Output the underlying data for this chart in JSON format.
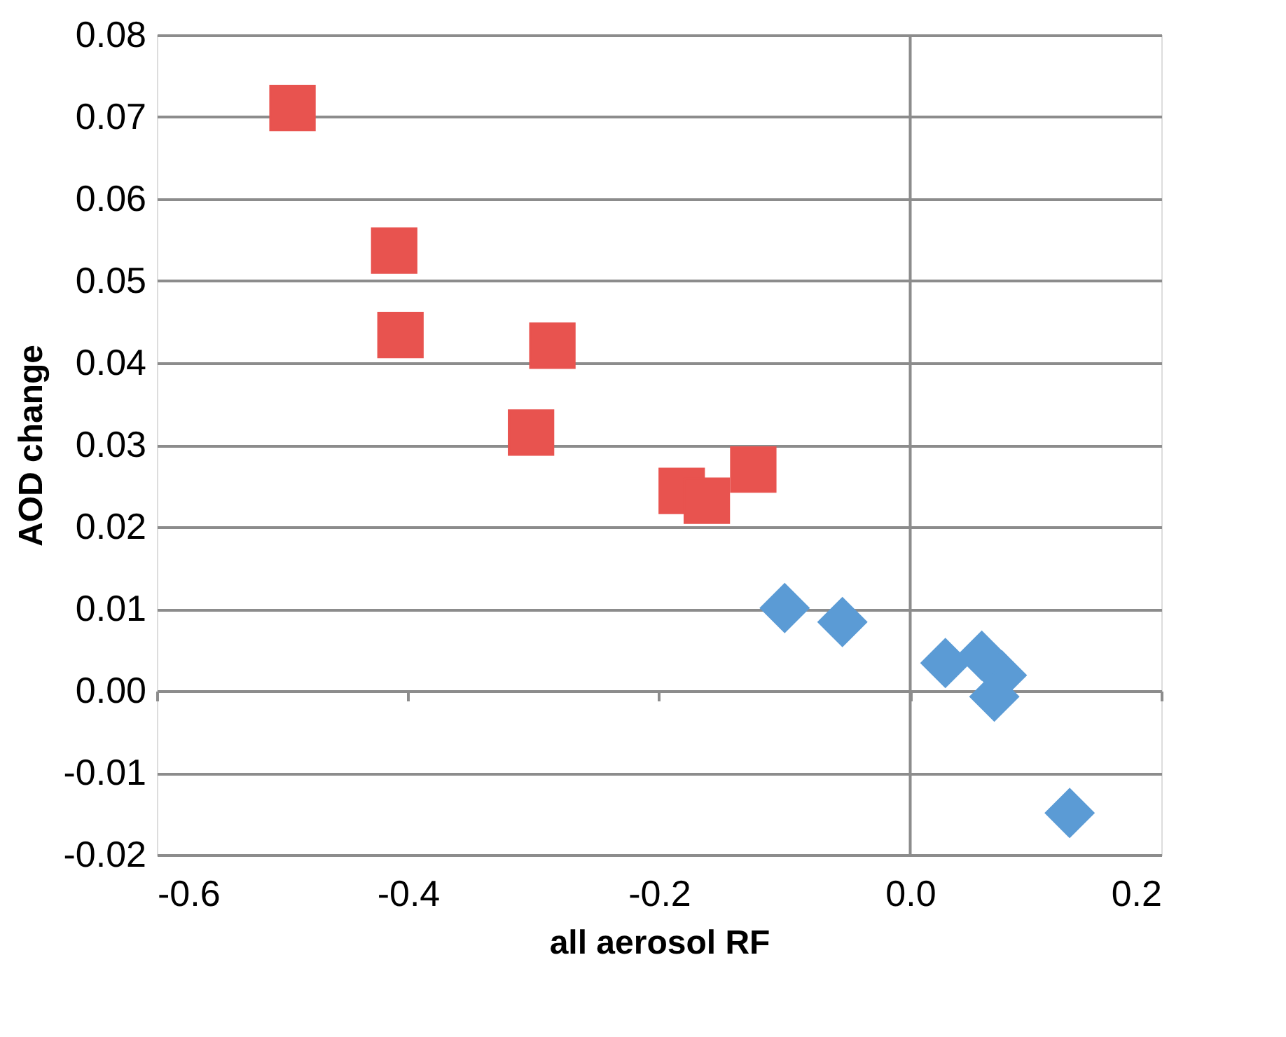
{
  "chart_data": {
    "type": "scatter",
    "xlabel": "all aerosol RF",
    "ylabel": "AOD change",
    "xlim": [
      -0.6,
      0.2
    ],
    "ylim": [
      -0.02,
      0.08
    ],
    "xticks": [
      -0.6,
      -0.4,
      -0.2,
      {
        "value": 0.0,
        "label": "0.0"
      },
      0.2
    ],
    "yticks": [
      {
        "value": -0.02,
        "label": "-0.02"
      },
      {
        "value": -0.01,
        "label": "-0.01"
      },
      {
        "value": 0.0,
        "label": "0.00"
      },
      {
        "value": 0.01,
        "label": "0.01"
      },
      {
        "value": 0.02,
        "label": "0.02"
      },
      {
        "value": 0.03,
        "label": "0.03"
      },
      {
        "value": 0.04,
        "label": "0.04"
      },
      {
        "value": 0.05,
        "label": "0.05"
      },
      {
        "value": 0.06,
        "label": "0.06"
      },
      {
        "value": 0.07,
        "label": "0.07"
      },
      {
        "value": 0.08,
        "label": "0.08"
      }
    ],
    "grid": "y",
    "ref_lines": [
      {
        "axis": "x",
        "value": 0.0,
        "color": "#8c8c8c"
      }
    ],
    "series": [
      {
        "color": "#e8534f",
        "marker": "square",
        "x": [
          -0.492,
          -0.411,
          -0.406,
          -0.285,
          -0.302,
          -0.182,
          -0.162,
          -0.125
        ],
        "values": [
          0.0711,
          0.0537,
          0.0434,
          0.0421,
          0.0315,
          0.0244,
          0.0232,
          0.027
        ]
      },
      {
        "color": "#5b9bd5",
        "marker": "diamond",
        "x": [
          -0.1,
          -0.054,
          0.028,
          0.057,
          0.073,
          0.067,
          0.127
        ],
        "values": [
          0.0101,
          0.0084,
          0.0034,
          0.0043,
          0.0019,
          -0.0007,
          -0.0149
        ]
      }
    ]
  }
}
